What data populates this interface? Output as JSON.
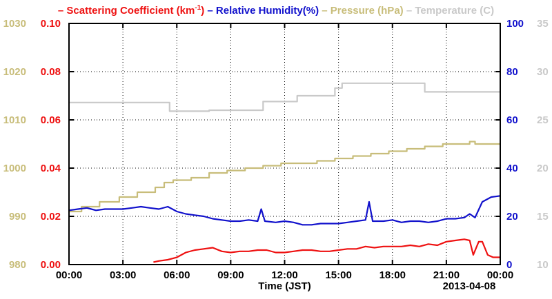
{
  "chart_data": {
    "type": "line",
    "xlabel": "Time (JST)",
    "date_label": "2013-04-08",
    "x_ticks": [
      "00:00",
      "03:00",
      "06:00",
      "09:00",
      "12:00",
      "15:00",
      "18:00",
      "21:00",
      "00:00"
    ],
    "x_hours": [
      0,
      3,
      6,
      9,
      12,
      15,
      18,
      21,
      24
    ],
    "grid": true,
    "legend": [
      {
        "prefix": "–",
        "name": "Scattering Coefficient (km",
        "sup": "-1",
        "suffix": ")",
        "color": "#ee1111"
      },
      {
        "prefix": "–",
        "name": "Relative Humidity(%)",
        "sup": "",
        "suffix": "",
        "color": "#1111cc"
      },
      {
        "prefix": "–",
        "name": "Pressure (hPa)",
        "sup": "",
        "suffix": "",
        "color": "#c8bd7a"
      },
      {
        "prefix": "–",
        "name": "Temperature (",
        "sup": "",
        "suffix": "C)",
        "color": "#c9c9c9"
      }
    ],
    "axes": {
      "pressure": {
        "side": "left-outer",
        "min": 980,
        "max": 1030,
        "ticks": [
          "980",
          "990",
          "1000",
          "1010",
          "1020",
          "1030"
        ],
        "color": "#c8bd7a"
      },
      "scattering": {
        "side": "left-inner",
        "min": 0.0,
        "max": 0.1,
        "ticks": [
          "0.00",
          "0.02",
          "0.04",
          "0.06",
          "0.08",
          "0.10"
        ],
        "color": "#ee1111"
      },
      "humidity": {
        "side": "right-inner",
        "min": 0,
        "max": 100,
        "ticks": [
          "0",
          "20",
          "40",
          "60",
          "80",
          "100"
        ],
        "color": "#1111cc"
      },
      "temperature": {
        "side": "right-outer",
        "min": 10,
        "max": 35,
        "ticks": [
          "10",
          "15",
          "20",
          "25",
          "30",
          "35"
        ],
        "color": "#c9c9c9"
      }
    },
    "series": [
      {
        "name": "Pressure (hPa)",
        "axis": "pressure",
        "color": "#c8bd7a",
        "step": true,
        "x": [
          0,
          0.7,
          1.7,
          2.8,
          3.8,
          4.8,
          5.3,
          5.8,
          6.8,
          7.8,
          8.8,
          9.8,
          10.8,
          11.8,
          12.8,
          13.8,
          14.8,
          15.8,
          16.8,
          17.8,
          18.8,
          19.8,
          20.8,
          22.3,
          22.6,
          24
        ],
        "y": [
          991,
          992,
          993,
          994,
          995,
          996,
          997,
          997.5,
          998,
          999,
          999.5,
          1000,
          1000.5,
          1001,
          1001,
          1001.5,
          1002,
          1002.5,
          1003,
          1003.5,
          1004,
          1004.5,
          1005,
          1005.5,
          1005,
          1005
        ]
      },
      {
        "name": "Temperature",
        "axis": "temperature",
        "color": "#c9c9c9",
        "step": true,
        "x": [
          0,
          5.2,
          5.6,
          7.8,
          10.8,
          12.7,
          14.8,
          15.2,
          19.8,
          24
        ],
        "y": [
          26.8,
          26.8,
          25.9,
          26.0,
          26.9,
          27.5,
          28.3,
          28.8,
          27.9,
          27.9
        ]
      },
      {
        "name": "Relative Humidity(%)",
        "axis": "humidity",
        "color": "#1111cc",
        "step": false,
        "x": [
          0,
          0.5,
          1.0,
          1.5,
          2.0,
          2.5,
          3.0,
          3.5,
          4.0,
          4.5,
          5.0,
          5.5,
          6.0,
          6.5,
          7.0,
          7.5,
          8.0,
          8.5,
          9.0,
          9.5,
          10.0,
          10.5,
          10.7,
          10.9,
          11.5,
          12.0,
          12.5,
          13.0,
          13.5,
          14.0,
          14.5,
          15.0,
          15.5,
          16.0,
          16.5,
          16.7,
          16.9,
          17.5,
          18.0,
          18.5,
          19.0,
          19.5,
          20.0,
          20.5,
          21.0,
          21.5,
          22.0,
          22.3,
          22.6,
          23.0,
          23.5,
          24.0
        ],
        "y": [
          22.5,
          23,
          23.5,
          22.5,
          23,
          23,
          23,
          23.5,
          24,
          23.5,
          23,
          24,
          22,
          21,
          20.5,
          20,
          19,
          18.5,
          18,
          18,
          18.5,
          18,
          23,
          18,
          17.5,
          18,
          17.5,
          16.5,
          16.5,
          17,
          17,
          17,
          17.5,
          18,
          18.5,
          26,
          18,
          18,
          18.5,
          17.5,
          18,
          18,
          17.5,
          18,
          19,
          19,
          19.5,
          21,
          19.5,
          26,
          28,
          28.5
        ]
      },
      {
        "name": "Scattering Coefficient",
        "axis": "scattering",
        "color": "#ee1111",
        "step": false,
        "x": [
          4.7,
          5.0,
          5.5,
          6.0,
          6.5,
          7.0,
          7.5,
          8.0,
          8.5,
          9.0,
          9.5,
          10.0,
          10.5,
          11.0,
          11.5,
          12.0,
          12.5,
          13.0,
          13.5,
          14.0,
          14.5,
          15.0,
          15.5,
          16.0,
          16.5,
          17.0,
          17.5,
          18.0,
          18.5,
          19.0,
          19.5,
          20.0,
          20.5,
          21.0,
          21.5,
          22.0,
          22.3,
          22.5,
          22.8,
          23.0,
          23.3,
          23.6,
          24.0
        ],
        "y": [
          0.001,
          0.0015,
          0.002,
          0.003,
          0.005,
          0.006,
          0.0065,
          0.007,
          0.0055,
          0.005,
          0.0055,
          0.0055,
          0.006,
          0.006,
          0.005,
          0.005,
          0.0055,
          0.006,
          0.006,
          0.0055,
          0.0055,
          0.006,
          0.0065,
          0.0065,
          0.0075,
          0.007,
          0.0075,
          0.0075,
          0.0075,
          0.008,
          0.0075,
          0.0085,
          0.008,
          0.0095,
          0.01,
          0.0105,
          0.01,
          0.004,
          0.0095,
          0.0095,
          0.004,
          0.003,
          0.003
        ]
      }
    ]
  }
}
